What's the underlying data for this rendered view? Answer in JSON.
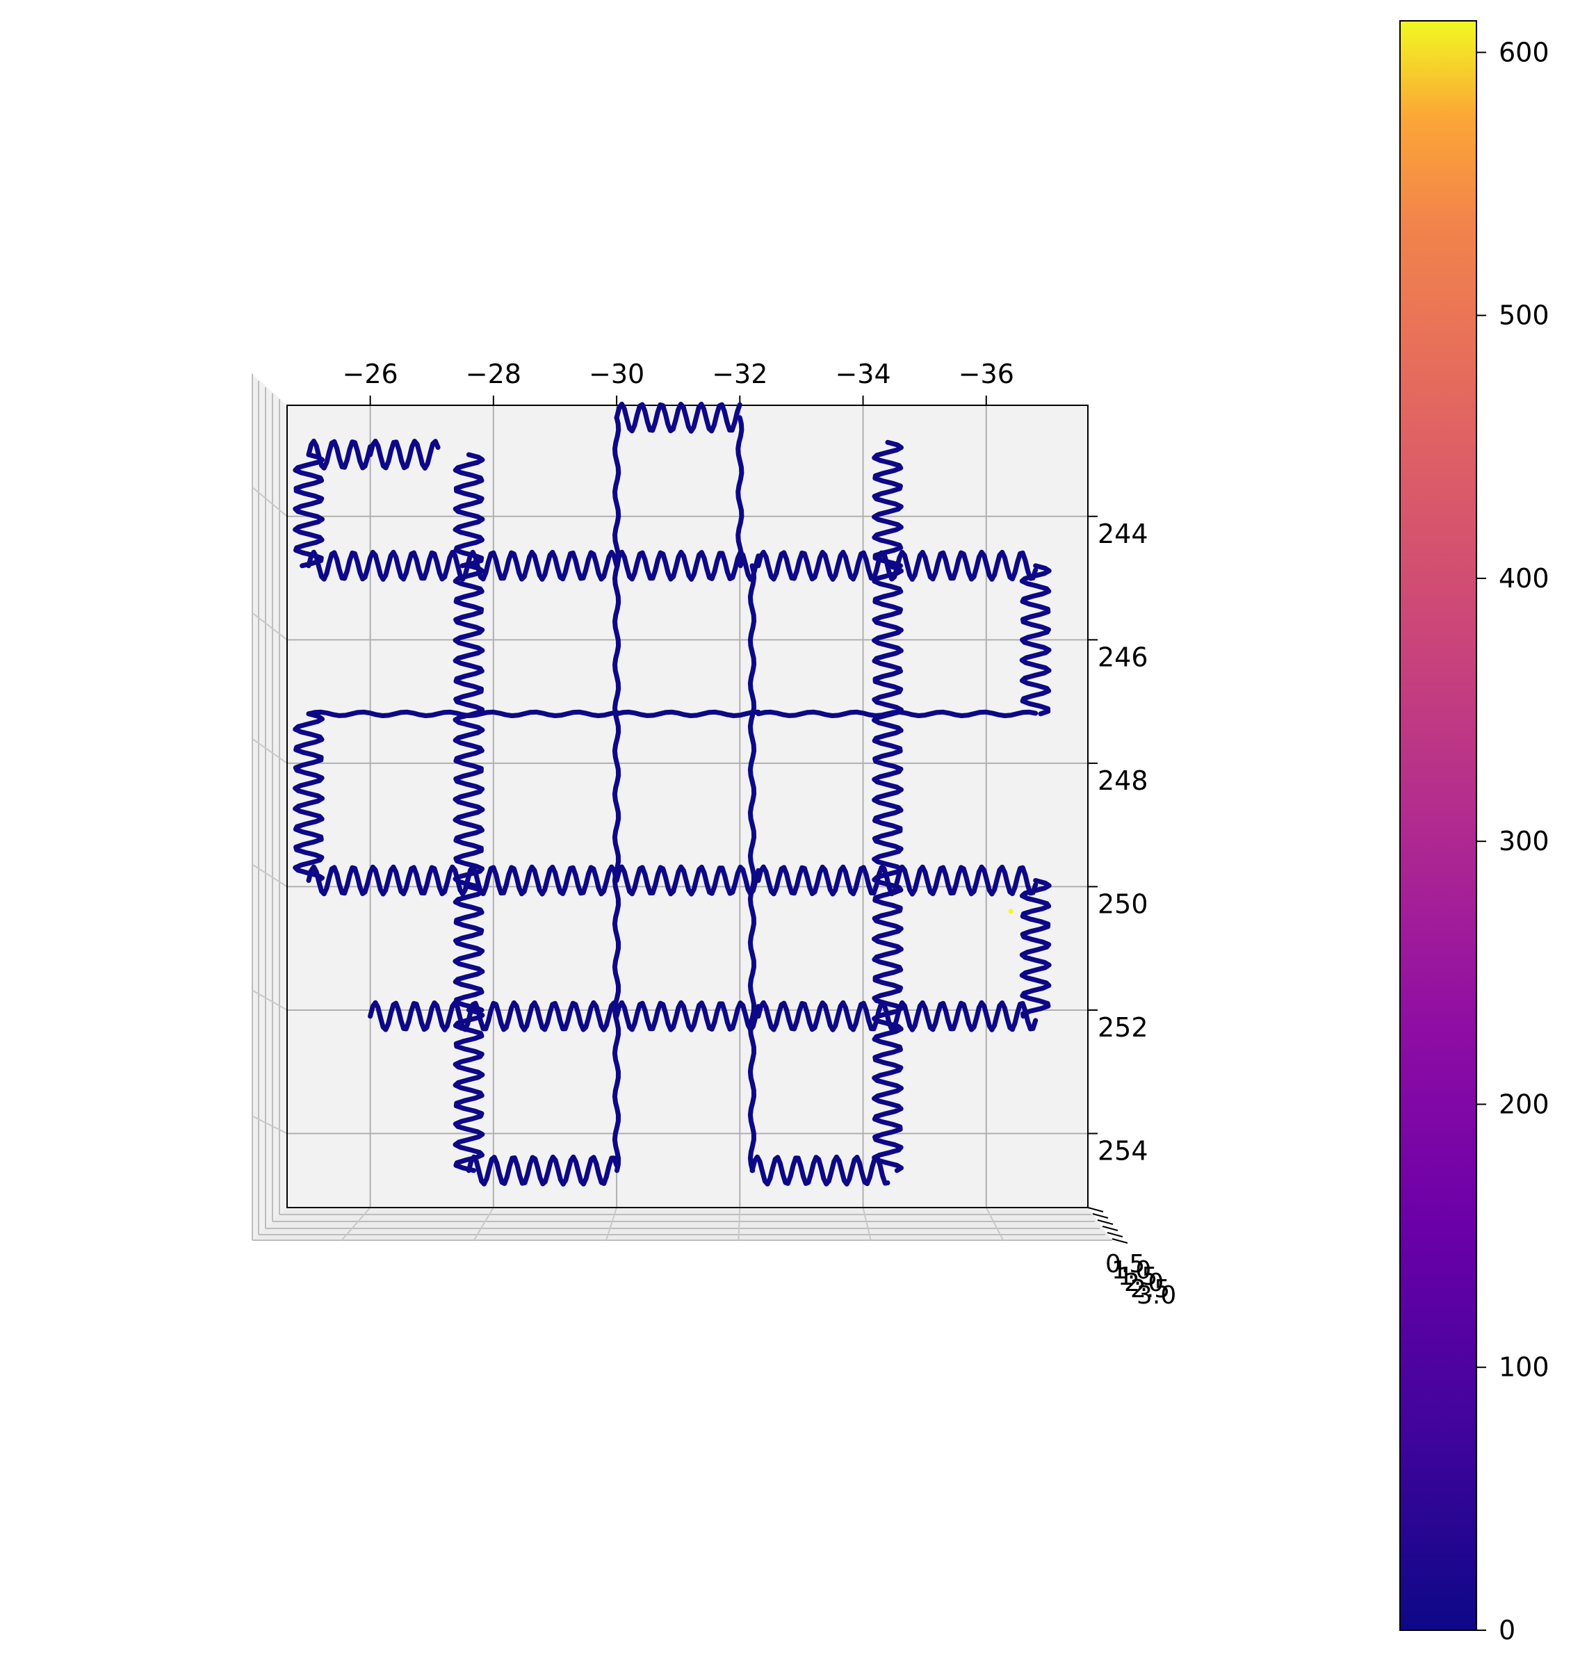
{
  "chart_data": {
    "type": "line",
    "projection": "3d, viewed from top",
    "title": "",
    "xlabel": "",
    "ylabel": "",
    "zlabel": "",
    "x_axis": {
      "ticks": [
        -26,
        -28,
        -30,
        -32,
        -34,
        -36
      ],
      "tick_labels": [
        "−26",
        "−28",
        "−30",
        "−32",
        "−34",
        "−36"
      ],
      "range": [
        -24.65,
        -37.65
      ],
      "position": "top"
    },
    "y_axis": {
      "ticks": [
        244,
        246,
        248,
        250,
        252,
        254
      ],
      "tick_labels": [
        "244",
        "246",
        "248",
        "250",
        "252",
        "254"
      ],
      "range": [
        242.2,
        255.2
      ],
      "position": "right"
    },
    "z_axis": {
      "ticks": [
        0.5,
        1.0,
        1.5,
        2.0,
        2.5,
        3.0
      ],
      "tick_labels": [
        "0.5",
        "1.0",
        "1.5",
        "2.0",
        "2.5",
        "3.0"
      ]
    },
    "grid": true,
    "colormap": "plasma",
    "colorbar": {
      "ticks": [
        0,
        100,
        200,
        300,
        400,
        500,
        600
      ],
      "tick_labels": [
        "0",
        "100",
        "200",
        "300",
        "400",
        "500",
        "600"
      ],
      "range": [
        0,
        612
      ]
    },
    "path_color_value": 0,
    "path_wiggle_amplitude": 0.22,
    "series": [
      {
        "segments": [
          {
            "x": [
              -25.0,
              -26.0,
              -27.1
            ],
            "y": [
              243.0,
              243.0,
              243.0
            ],
            "wiggle": true
          },
          {
            "x": [
              -25.0,
              -25.0
            ],
            "y": [
              243.0,
              244.8
            ],
            "wiggle": true
          },
          {
            "x": [
              -25.0,
              -30.0,
              -32.3,
              -36.8
            ],
            "y": [
              244.8,
              244.8,
              244.8,
              244.8
            ],
            "wiggle": true
          },
          {
            "x": [
              -27.6,
              -27.6
            ],
            "y": [
              243.0,
              244.8
            ],
            "wiggle": true
          },
          {
            "x": [
              -27.6,
              -27.6
            ],
            "y": [
              244.8,
              250.0
            ],
            "wiggle": true
          },
          {
            "x": [
              -27.6,
              -27.6
            ],
            "y": [
              250.0,
              252.0
            ],
            "wiggle": true
          },
          {
            "x": [
              -27.6,
              -27.6
            ],
            "y": [
              252.0,
              254.6
            ],
            "wiggle": true
          },
          {
            "x": [
              -30.0,
              -32.0
            ],
            "y": [
              242.4,
              242.4
            ],
            "wiggle": true
          },
          {
            "x": [
              -30.0,
              -30.0
            ],
            "y": [
              242.4,
              254.6
            ],
            "wiggle": false
          },
          {
            "x": [
              -32.0,
              -32.0
            ],
            "y": [
              242.4,
              244.8
            ],
            "wiggle": false
          },
          {
            "x": [
              -32.2,
              -32.2
            ],
            "y": [
              244.8,
              254.6
            ],
            "wiggle": false
          },
          {
            "x": [
              -34.4,
              -34.4
            ],
            "y": [
              242.8,
              244.8
            ],
            "wiggle": true
          },
          {
            "x": [
              -34.4,
              -34.4
            ],
            "y": [
              244.8,
              254.6
            ],
            "wiggle": true
          },
          {
            "x": [
              -36.8,
              -36.8
            ],
            "y": [
              244.8,
              247.2
            ],
            "wiggle": true
          },
          {
            "x": [
              -25.0,
              -30.0,
              -32.3,
              -36.8
            ],
            "y": [
              247.2,
              247.2,
              247.2,
              247.2
            ],
            "wiggle": false
          },
          {
            "x": [
              -25.0,
              -25.0
            ],
            "y": [
              247.2,
              249.9
            ],
            "wiggle": true
          },
          {
            "x": [
              -25.0,
              -30.0,
              -32.3,
              -36.8
            ],
            "y": [
              249.9,
              249.9,
              249.9,
              249.9
            ],
            "wiggle": true
          },
          {
            "x": [
              -36.8,
              -36.8
            ],
            "y": [
              249.9,
              252.1
            ],
            "wiggle": true
          },
          {
            "x": [
              -26.0,
              -30.0,
              -32.3,
              -36.8
            ],
            "y": [
              252.1,
              252.1,
              252.1,
              252.1
            ],
            "wiggle": true
          },
          {
            "x": [
              -27.6,
              -30.0
            ],
            "y": [
              254.6,
              254.6
            ],
            "wiggle": true
          },
          {
            "x": [
              -32.2,
              -34.4
            ],
            "y": [
              254.6,
              254.6
            ],
            "wiggle": true
          }
        ]
      }
    ],
    "outlier_points": [
      {
        "x": -36.4,
        "y": 250.4,
        "value": 612
      }
    ]
  }
}
